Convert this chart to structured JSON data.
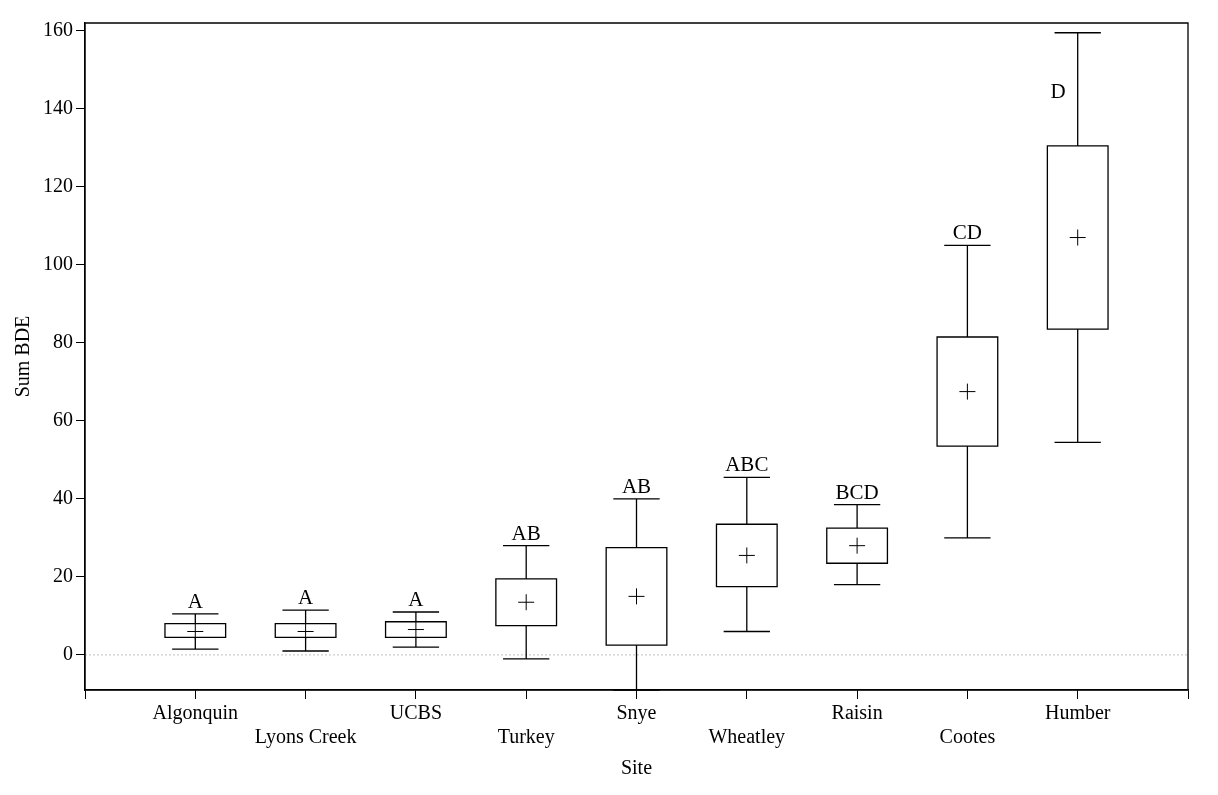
{
  "chart_data": {
    "type": "box",
    "xlabel": "Site",
    "ylabel": "Sum BDE",
    "categories": [
      "Algonquin",
      "Lyons Creek",
      "UCBS",
      "Turkey",
      "Snye",
      "Wheatley",
      "Raisin",
      "Cootes",
      "Humber"
    ],
    "boxes": [
      {
        "low": 1.5,
        "q1": 4.5,
        "median": 6,
        "q3": 8,
        "high": 10.5
      },
      {
        "low": 1,
        "q1": 4.5,
        "median": 6,
        "q3": 8,
        "high": 11.5
      },
      {
        "low": 2,
        "q1": 4.5,
        "median": 6.5,
        "q3": 8.5,
        "high": 11
      },
      {
        "low": -1,
        "q1": 7.5,
        "median": 13.5,
        "q3": 19.5,
        "high": 28
      },
      {
        "low": -9,
        "q1": 2.5,
        "median": 15,
        "q3": 27.5,
        "high": 40
      },
      {
        "low": 6,
        "q1": 17.5,
        "median": 25.5,
        "q3": 33.5,
        "high": 45.5
      },
      {
        "low": 18,
        "q1": 23.5,
        "median": 28,
        "q3": 32.5,
        "high": 38.5
      },
      {
        "low": 30,
        "q1": 53.5,
        "median": 67.5,
        "q3": 81.5,
        "high": 105
      },
      {
        "low": 54.5,
        "q1": 83.5,
        "median": 107,
        "q3": 130.5,
        "high": 159.5
      }
    ],
    "color": "#000000",
    "ylim": [
      -9,
      162
    ],
    "yticks": [
      0,
      20,
      40,
      60,
      80,
      100,
      120,
      140,
      160
    ],
    "ref_lines": [
      {
        "axis": "y",
        "value": 0,
        "color": "#c0c0c0",
        "line_style": "dotted"
      }
    ],
    "annotations": [
      {
        "text": "A",
        "x": "Algonquin",
        "y": 10.5
      },
      {
        "text": "A",
        "x": "Lyons Creek",
        "y": 11.5
      },
      {
        "text": "A",
        "x": "UCBS",
        "y": 11
      },
      {
        "text": "AB",
        "x": "Turkey",
        "y": 28
      },
      {
        "text": "AB",
        "x": "Snye",
        "y": 40
      },
      {
        "text": "ABC",
        "x": "Wheatley",
        "y": 45.5
      },
      {
        "text": "BCD",
        "x": "Raisin",
        "y": 38.5
      },
      {
        "text": "CD",
        "x": "Cootes",
        "y": 105
      },
      {
        "text": "D",
        "x": "Humber",
        "y": 159.5
      }
    ],
    "grid": false,
    "legend": false,
    "marker": "cross"
  }
}
